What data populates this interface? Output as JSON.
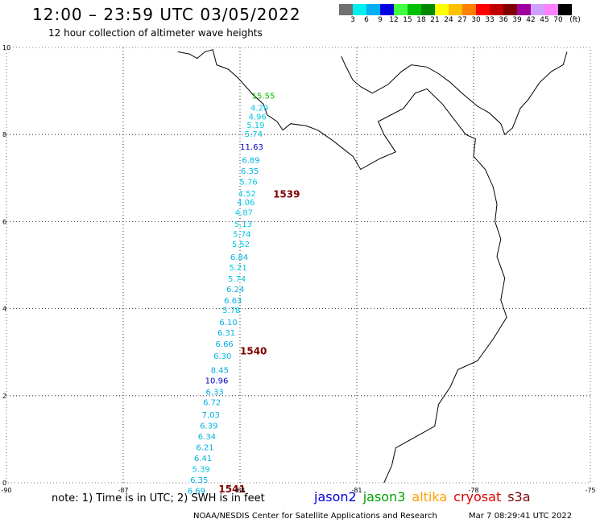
{
  "header": {
    "title": "12:00 – 23:59 UTC 03/05/2022",
    "subtitle": "12 hour collection of altimeter wave heights"
  },
  "legend": {
    "unit": "(ft)",
    "bins": [
      {
        "label": "3",
        "color": "#707070"
      },
      {
        "label": "6",
        "color": "#00f0f0"
      },
      {
        "label": "9",
        "color": "#00b0f0"
      },
      {
        "label": "12",
        "color": "#0000e0"
      },
      {
        "label": "15",
        "color": "#40ff40"
      },
      {
        "label": "18",
        "color": "#00c000"
      },
      {
        "label": "21",
        "color": "#008800"
      },
      {
        "label": "24",
        "color": "#ffff00"
      },
      {
        "label": "27",
        "color": "#ffc000"
      },
      {
        "label": "30",
        "color": "#ff8000"
      },
      {
        "label": "33",
        "color": "#ff0000"
      },
      {
        "label": "36",
        "color": "#c00000"
      },
      {
        "label": "39",
        "color": "#800000"
      },
      {
        "label": "42",
        "color": "#a000a0"
      },
      {
        "label": "45",
        "color": "#d0a0ff"
      },
      {
        "label": "70",
        "color": "#ff80ff"
      },
      {
        "label": "",
        "color": "#000000"
      }
    ]
  },
  "axes": {
    "x_ticks": [
      "-90",
      "-87",
      "-84",
      "-81",
      "-78",
      "-75"
    ],
    "y_ticks": [
      "0",
      "2",
      "4",
      "6",
      "8",
      "10"
    ]
  },
  "observations": [
    {
      "v": "15.55",
      "lon": -83.4,
      "lat": 8.83,
      "color": "#00c000"
    },
    {
      "v": "4.29",
      "lon": -83.5,
      "lat": 8.55,
      "color": "#00c8e0"
    },
    {
      "v": "4.96",
      "lon": -83.55,
      "lat": 8.35,
      "color": "#00c8e0"
    },
    {
      "v": "5.19",
      "lon": -83.6,
      "lat": 8.15,
      "color": "#00c8e0"
    },
    {
      "v": "5.74",
      "lon": -83.65,
      "lat": 7.95,
      "color": "#00c8e0"
    },
    {
      "v": "11.63",
      "lon": -83.7,
      "lat": 7.65,
      "color": "#0000c0"
    },
    {
      "v": "6.89",
      "lon": -83.72,
      "lat": 7.35,
      "color": "#00b0e0"
    },
    {
      "v": "6.35",
      "lon": -83.75,
      "lat": 7.1,
      "color": "#00b0e0"
    },
    {
      "v": "5.76",
      "lon": -83.78,
      "lat": 6.85,
      "color": "#00c8e0"
    },
    {
      "v": "4.52",
      "lon": -83.82,
      "lat": 6.58,
      "color": "#00c8e0"
    },
    {
      "v": "4.06",
      "lon": -83.85,
      "lat": 6.38,
      "color": "#00c8e0"
    },
    {
      "v": "4.87",
      "lon": -83.9,
      "lat": 6.15,
      "color": "#00c8e0"
    },
    {
      "v": "5.13",
      "lon": -83.92,
      "lat": 5.88,
      "color": "#00c8e0"
    },
    {
      "v": "5.74",
      "lon": -83.95,
      "lat": 5.65,
      "color": "#00c8e0"
    },
    {
      "v": "5.52",
      "lon": -83.98,
      "lat": 5.42,
      "color": "#00c8e0"
    },
    {
      "v": "6.84",
      "lon": -84.02,
      "lat": 5.12,
      "color": "#00b0e0"
    },
    {
      "v": "5.21",
      "lon": -84.05,
      "lat": 4.88,
      "color": "#00c8e0"
    },
    {
      "v": "5.74",
      "lon": -84.08,
      "lat": 4.62,
      "color": "#00c8e0"
    },
    {
      "v": "6.24",
      "lon": -84.12,
      "lat": 4.38,
      "color": "#00b0e0"
    },
    {
      "v": "6.63",
      "lon": -84.18,
      "lat": 4.12,
      "color": "#00b0e0"
    },
    {
      "v": "5.78",
      "lon": -84.22,
      "lat": 3.9,
      "color": "#00c8e0"
    },
    {
      "v": "6.10",
      "lon": -84.3,
      "lat": 3.62,
      "color": "#00b0e0"
    },
    {
      "v": "6.31",
      "lon": -84.35,
      "lat": 3.38,
      "color": "#00b0e0"
    },
    {
      "v": "6.66",
      "lon": -84.4,
      "lat": 3.12,
      "color": "#00b0e0"
    },
    {
      "v": "6.30",
      "lon": -84.45,
      "lat": 2.85,
      "color": "#00b0e0"
    },
    {
      "v": "8.45",
      "lon": -84.52,
      "lat": 2.52,
      "color": "#00b0e0"
    },
    {
      "v": "10.96",
      "lon": -84.6,
      "lat": 2.28,
      "color": "#0000c0"
    },
    {
      "v": "6.33",
      "lon": -84.65,
      "lat": 2.02,
      "color": "#00b0e0"
    },
    {
      "v": "6.72",
      "lon": -84.72,
      "lat": 1.78,
      "color": "#00b0e0"
    },
    {
      "v": "7.03",
      "lon": -84.75,
      "lat": 1.5,
      "color": "#00b0e0"
    },
    {
      "v": "6.39",
      "lon": -84.8,
      "lat": 1.25,
      "color": "#00b0e0"
    },
    {
      "v": "6.34",
      "lon": -84.85,
      "lat": 1.0,
      "color": "#00b0e0"
    },
    {
      "v": "6.21",
      "lon": -84.9,
      "lat": 0.75,
      "color": "#00b0e0"
    },
    {
      "v": "6.41",
      "lon": -84.95,
      "lat": 0.5,
      "color": "#00b0e0"
    },
    {
      "v": "5.39",
      "lon": -85.0,
      "lat": 0.25,
      "color": "#00c8e0"
    },
    {
      "v": "6.35",
      "lon": -85.05,
      "lat": 0.0,
      "color": "#00b0e0"
    },
    {
      "v": "6.69",
      "lon": -85.12,
      "lat": -0.25,
      "color": "#00b0e0"
    }
  ],
  "passes": [
    {
      "id": "1539",
      "lon": -83.15,
      "lat": 6.55
    },
    {
      "id": "1540",
      "lon": -84.0,
      "lat": 2.95
    },
    {
      "id": "1541",
      "lon": -84.55,
      "lat": -0.22
    }
  ],
  "footer": {
    "note": "note:  1) Time is in UTC;  2) SWH is in feet",
    "satellites": [
      {
        "name": "jason2",
        "color": "#0000e0"
      },
      {
        "name": "jason3",
        "color": "#00a000"
      },
      {
        "name": "altika",
        "color": "#ffa000"
      },
      {
        "name": "cryosat",
        "color": "#e00000"
      },
      {
        "name": "s3a",
        "color": "#800000"
      }
    ],
    "credit": "NOAA/NESDIS Center for Satellite Applications and Research",
    "timestamp": "Mar  7 08:29:41 UTC 2022"
  }
}
